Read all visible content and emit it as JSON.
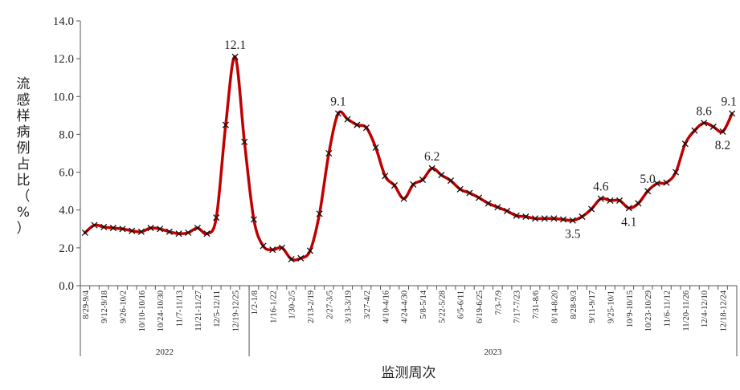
{
  "chart_data": {
    "type": "line",
    "xlabel": "监测周次",
    "ylabel": "流感样病例占比（%）",
    "ylim": [
      0,
      14
    ],
    "yticks": [
      "0.0",
      "2.0",
      "4.0",
      "6.0",
      "8.0",
      "10.0",
      "12.0",
      "14.0"
    ],
    "line_color": "#c00000",
    "marker": "x",
    "categories": [
      "8/29-9/4",
      "9/5-9/11",
      "9/12-9/18",
      "9/19-9/25",
      "9/26-10/2",
      "10/3-10/9",
      "10/10-10/16",
      "10/17-10/23",
      "10/24-10/30",
      "10/31-11/6",
      "11/7-11/13",
      "11/14-11/20",
      "11/21-11/27",
      "11/28-12/4",
      "12/5-12/11",
      "12/12-12/18",
      "12/19-12/25",
      "12/26-1/1",
      "1/2-1/8",
      "1/9-1/15",
      "1/16-1/22",
      "1/23-1/29",
      "1/30-2/5",
      "2/6-2/12",
      "2/13-2/19",
      "2/20-2/26",
      "2/27-3/5",
      "3/6-3/12",
      "3/13-3/19",
      "3/20-3/26",
      "3/27-4/2",
      "4/3-4/9",
      "4/10-4/16",
      "4/17-4/23",
      "4/24-4/30",
      "5/1-5/7",
      "5/8-5/14",
      "5/15-5/21",
      "5/22-5/28",
      "5/29-6/4",
      "6/5-6/11",
      "6/12-6/18",
      "6/19-6/25",
      "6/26-7/2",
      "7/3-7/9",
      "7/10-7/16",
      "7/17-7/23",
      "7/24-7/30",
      "7/31-8/6",
      "8/7-8/13",
      "8/14-8/20",
      "8/21-8/27",
      "8/28-9/3",
      "9/4-9/10",
      "9/11-9/17",
      "9/18-9/24",
      "9/25-10/1",
      "10/2-10/8",
      "10/9-10/15",
      "10/16-10/22",
      "10/23-10/29",
      "10/30-11/5",
      "11/6-11/12",
      "11/13-11/19",
      "11/20-11/26",
      "11/27-12/3",
      "12/4-12/10",
      "12/11-12/17",
      "12/18-12/24",
      "12/25-12/31"
    ],
    "x_tick_labels": [
      "8/29-9/4",
      "9/12-9/18",
      "9/26-10/2",
      "10/10-10/16",
      "10/24-10/30",
      "11/7-11/13",
      "11/21-11/27",
      "12/5-12/11",
      "12/19-12/25",
      "1/2-1/8",
      "1/16-1/22",
      "1/30-2/5",
      "2/13-2/19",
      "2/27-3/5",
      "3/13-3/19",
      "3/27-4/2",
      "4/10-4/16",
      "4/24-4/30",
      "5/8-5/14",
      "5/22-5/28",
      "6/5-6/11",
      "6/19-6/25",
      "7/3-7/9",
      "7/17-7/23",
      "7/31-8/6",
      "8/14-8/20",
      "8/28-9/3",
      "9/11-9/17",
      "9/25-10/1",
      "10/9-10/15",
      "10/23-10/29",
      "11/6-11/12",
      "11/20-11/26",
      "12/4-12/10",
      "12/18-12/24"
    ],
    "years": [
      {
        "label": "2022",
        "start_index": 0,
        "end_index": 17
      },
      {
        "label": "2023",
        "start_index": 18,
        "end_index": 69
      }
    ],
    "values": [
      2.8,
      3.2,
      3.1,
      3.05,
      3.0,
      2.9,
      2.85,
      3.05,
      3.0,
      2.85,
      2.75,
      2.8,
      3.05,
      2.75,
      3.6,
      8.5,
      12.1,
      7.6,
      3.5,
      2.1,
      1.9,
      2.0,
      1.4,
      1.45,
      1.85,
      3.8,
      7.0,
      9.1,
      8.8,
      8.5,
      8.35,
      7.3,
      5.8,
      5.3,
      4.6,
      5.35,
      5.6,
      6.2,
      5.85,
      5.55,
      5.1,
      4.9,
      4.65,
      4.35,
      4.15,
      3.95,
      3.7,
      3.65,
      3.55,
      3.55,
      3.55,
      3.5,
      3.45,
      3.65,
      4.05,
      4.6,
      4.5,
      4.5,
      4.1,
      4.35,
      5.0,
      5.4,
      5.45,
      6.0,
      7.5,
      8.2,
      8.6,
      8.4,
      8.15,
      9.1
    ],
    "data_labels": [
      {
        "index": 16,
        "text": "12.1"
      },
      {
        "index": 27,
        "text": "9.1"
      },
      {
        "index": 37,
        "text": "6.2"
      },
      {
        "index": 52,
        "text": "3.5"
      },
      {
        "index": 55,
        "text": "4.6"
      },
      {
        "index": 58,
        "text": "4.1"
      },
      {
        "index": 60,
        "text": "5.0"
      },
      {
        "index": 66,
        "text": "8.6"
      },
      {
        "index": 68,
        "text": "8.2"
      },
      {
        "index": 69,
        "text": "9.1"
      }
    ]
  }
}
